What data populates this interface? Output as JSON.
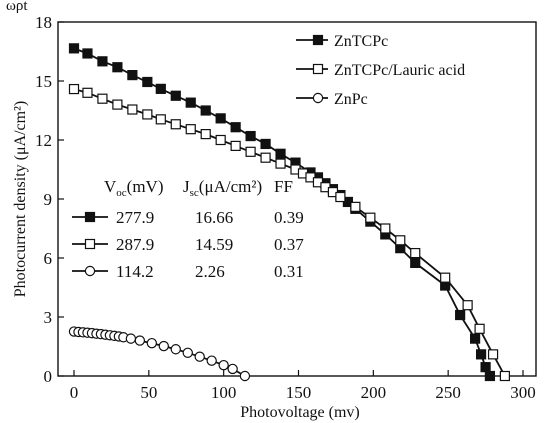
{
  "header_fragment": "ωρt",
  "chart_data": {
    "type": "line",
    "xlabel": "Photovoltage (mv)",
    "ylabel": "Photocurrent density (μA/cm²)",
    "xlim": [
      0,
      300
    ],
    "ylim": [
      0,
      18
    ],
    "xticks": [
      0,
      50,
      100,
      150,
      200,
      250,
      300
    ],
    "yticks": [
      0,
      3,
      6,
      9,
      12,
      15,
      18
    ],
    "legend_position": "top-right",
    "series": [
      {
        "name": "ZnTCPc",
        "marker": "filled-square",
        "x": [
          0,
          9,
          19,
          29,
          39,
          49,
          58,
          68,
          78,
          88,
          98,
          108,
          118,
          128,
          138,
          148,
          158,
          163,
          168,
          173,
          178,
          183,
          188,
          198,
          208,
          218,
          228,
          248,
          258,
          268,
          272,
          275,
          277.9
        ],
        "y": [
          16.66,
          16.4,
          16.0,
          15.7,
          15.3,
          14.95,
          14.6,
          14.25,
          13.9,
          13.5,
          13.1,
          12.65,
          12.2,
          11.8,
          11.3,
          10.85,
          10.35,
          10.1,
          9.8,
          9.5,
          9.2,
          8.85,
          8.5,
          7.85,
          7.2,
          6.5,
          5.75,
          4.6,
          3.1,
          1.9,
          1.1,
          0.45,
          0.0
        ]
      },
      {
        "name": "ZnTCPc/Lauric acid",
        "marker": "open-square",
        "x": [
          0,
          9,
          19,
          29,
          39,
          49,
          58,
          68,
          78,
          88,
          98,
          108,
          118,
          128,
          138,
          148,
          153,
          158,
          163,
          168,
          173,
          178,
          188,
          198,
          208,
          218,
          228,
          248,
          263,
          271,
          280,
          287.9
        ],
        "y": [
          14.59,
          14.4,
          14.1,
          13.8,
          13.55,
          13.3,
          13.05,
          12.8,
          12.55,
          12.3,
          12.0,
          11.7,
          11.4,
          11.1,
          10.8,
          10.5,
          10.3,
          10.1,
          9.85,
          9.6,
          9.35,
          9.1,
          8.6,
          8.05,
          7.5,
          6.9,
          6.25,
          5.0,
          3.6,
          2.4,
          1.1,
          0.0
        ]
      },
      {
        "name": "ZnPc",
        "marker": "open-circle",
        "x": [
          0,
          3,
          6,
          9,
          12,
          15,
          18,
          21,
          24,
          27,
          30,
          33,
          38,
          44,
          52,
          60,
          68,
          76,
          84,
          92,
          100,
          106,
          114.2
        ],
        "y": [
          2.26,
          2.24,
          2.22,
          2.2,
          2.18,
          2.15,
          2.13,
          2.1,
          2.07,
          2.04,
          2.01,
          1.97,
          1.9,
          1.8,
          1.67,
          1.52,
          1.36,
          1.18,
          0.98,
          0.78,
          0.55,
          0.36,
          0.0
        ]
      }
    ],
    "parameter_table": {
      "headers": {
        "voc": "V",
        "voc_sub": "oc",
        "voc_unit": "(mV)",
        "jsc": "J",
        "jsc_sub": "sc",
        "jsc_unit": "(μA/cm²)",
        "ff": "FF"
      },
      "rows": [
        {
          "marker": "filled-square",
          "voc": "277.9",
          "jsc": "16.66",
          "ff": "0.39"
        },
        {
          "marker": "open-square",
          "voc": "287.9",
          "jsc": "14.59",
          "ff": "0.37"
        },
        {
          "marker": "open-circle",
          "voc": "114.2",
          "jsc": "2.26",
          "ff": "0.31"
        }
      ]
    }
  }
}
